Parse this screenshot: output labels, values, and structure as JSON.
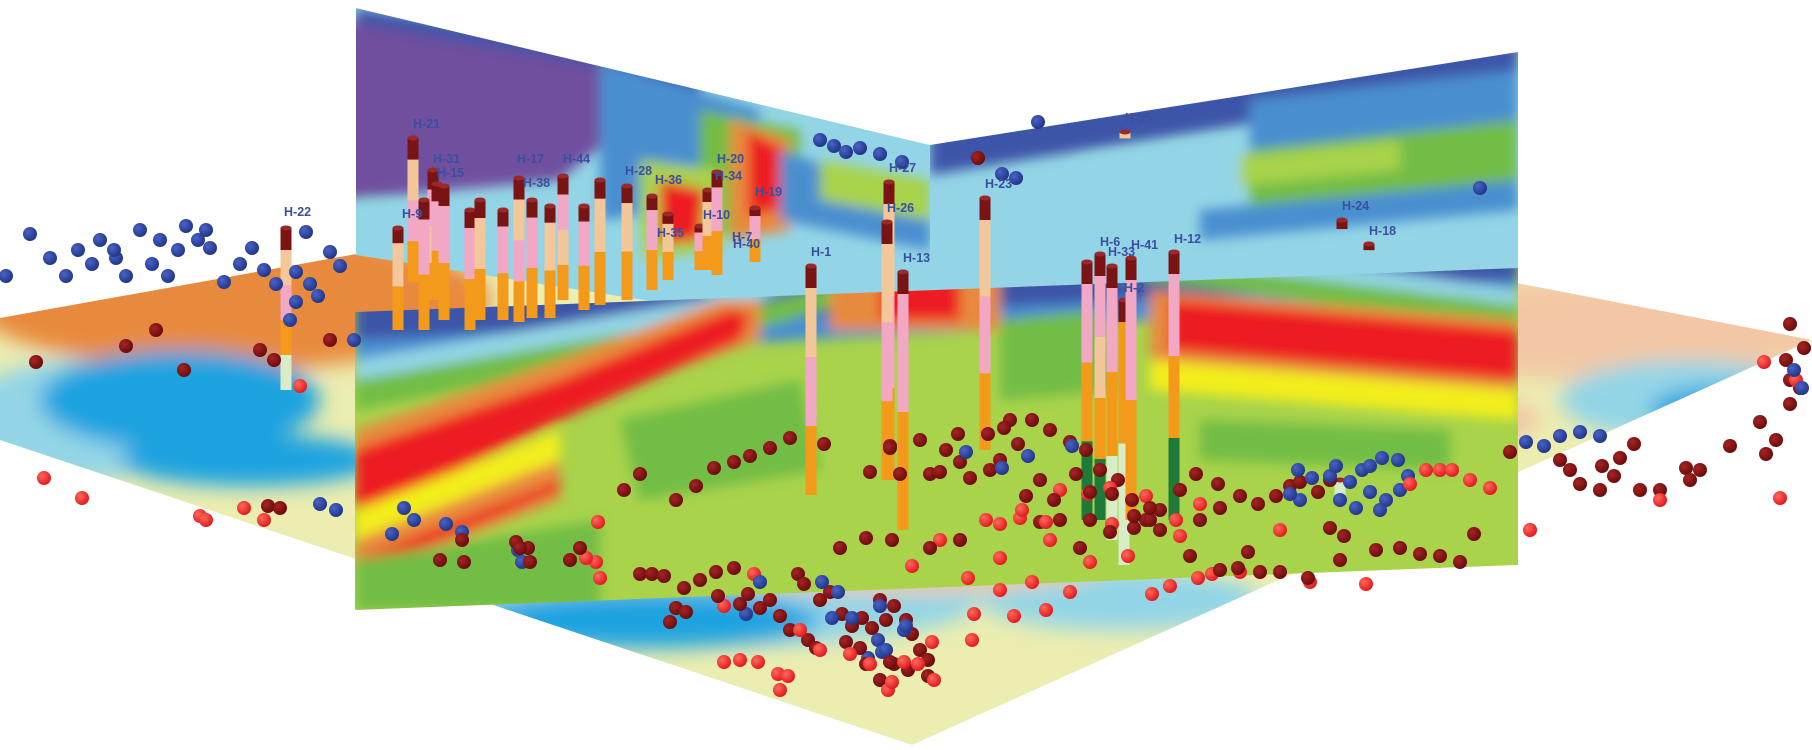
{
  "colors": {
    "deep_blue": "#3d55a8",
    "mid_blue": "#4a8fd0",
    "sky_blue": "#1aa3e0",
    "light_cyan": "#93d5e6",
    "pale_yellow": "#ecedb0",
    "pale_orange": "#f3c7a5",
    "orange": "#e88a3c",
    "green": "#72bd45",
    "light_green": "#a8d34b",
    "yellow": "#f3ee1f",
    "red": "#ed1f24",
    "purple": "#6f4f9f",
    "dot_dark_red": "#7a0f0f",
    "dot_red": "#e8262a",
    "dot_blue": "#263e96"
  },
  "boreholes": [
    {
      "id": "H-21",
      "label": "H-21"
    },
    {
      "id": "H-31",
      "label": "H-31"
    },
    {
      "id": "H-15",
      "label": "H-15"
    },
    {
      "id": "H-17",
      "label": "H-17"
    },
    {
      "id": "H-38",
      "label": "H-38"
    },
    {
      "id": "H-44",
      "label": "H-44"
    },
    {
      "id": "H-28",
      "label": "H-28"
    },
    {
      "id": "H-36",
      "label": "H-36"
    },
    {
      "id": "H-20",
      "label": "H-20"
    },
    {
      "id": "H-34",
      "label": "H-34"
    },
    {
      "id": "H-19",
      "label": "H-19"
    },
    {
      "id": "H-10",
      "label": "H-10"
    },
    {
      "id": "H-35",
      "label": "H-35"
    },
    {
      "id": "H-7",
      "label": "H-7"
    },
    {
      "id": "H-40",
      "label": "H-40"
    },
    {
      "id": "H-22",
      "label": "H-22"
    },
    {
      "id": "H-9",
      "label": "H-9"
    },
    {
      "id": "H-1",
      "label": "H-1"
    },
    {
      "id": "H-27",
      "label": "H-27"
    },
    {
      "id": "H-26",
      "label": "H-26"
    },
    {
      "id": "H-13",
      "label": "H-13"
    },
    {
      "id": "H-23",
      "label": "H-23"
    },
    {
      "id": "H-25",
      "label": "H-25"
    },
    {
      "id": "H-6",
      "label": "H-6"
    },
    {
      "id": "H-41",
      "label": "H-41"
    },
    {
      "id": "H-33",
      "label": "H-33"
    },
    {
      "id": "H-2",
      "label": "H-2"
    },
    {
      "id": "H-12",
      "label": "H-12"
    },
    {
      "id": "H-24",
      "label": "H-24"
    },
    {
      "id": "H-18",
      "label": "H-18"
    }
  ]
}
